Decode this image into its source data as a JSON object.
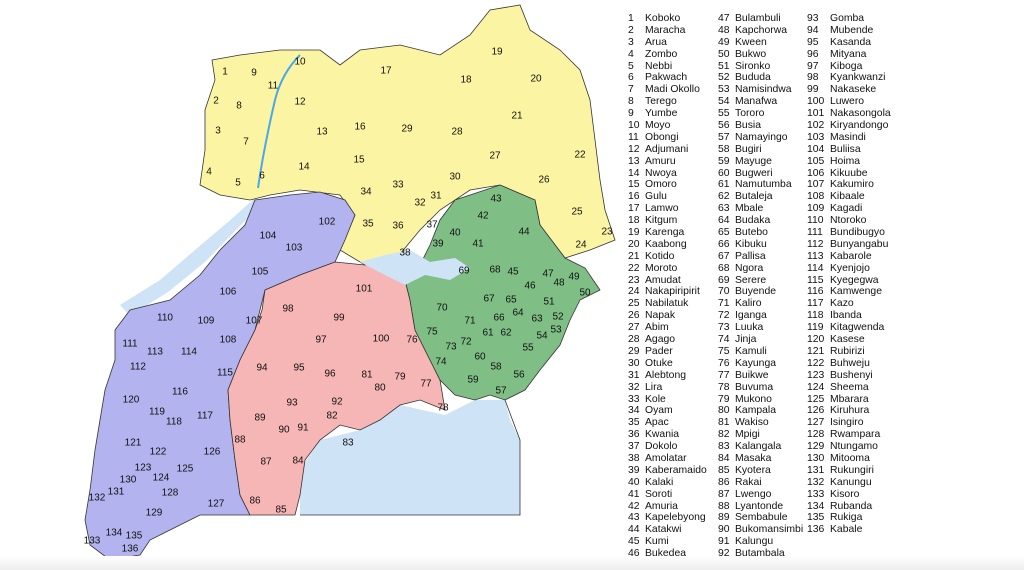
{
  "colors": {
    "north": "#fbf5a3",
    "east": "#7fbf86",
    "central": "#f6b6b6",
    "west": "#b3b3ef",
    "water": "#cfe3f6",
    "border": "#333333"
  },
  "districts": [
    "Koboko",
    "Maracha",
    "Arua",
    "Zombo",
    "Nebbi",
    "Pakwach",
    "Madi Okollo",
    "Terego",
    "Yumbe",
    "Moyo",
    "Obongi",
    "Adjumani",
    "Amuru",
    "Nwoya",
    "Omoro",
    "Gulu",
    "Lamwo",
    "Kitgum",
    "Karenga",
    "Kaabong",
    "Kotido",
    "Moroto",
    "Amudat",
    "Nakapiripirit",
    "Nabilatuk",
    "Napak",
    "Abim",
    "Agago",
    "Pader",
    "Otuke",
    "Alebtong",
    "Lira",
    "Kole",
    "Oyam",
    "Apac",
    "Kwania",
    "Dokolo",
    "Amolatar",
    "Kaberamaido",
    "Kalaki",
    "Soroti",
    "Amuria",
    "Kapelebyong",
    "Katakwi",
    "Kumi",
    "Bukedea",
    "Bulambuli",
    "Kapchorwa",
    "Kween",
    "Bukwo",
    "Sironko",
    "Bududa",
    "Namisindwa",
    "Manafwa",
    "Tororo",
    "Busia",
    "Namayingo",
    "Bugiri",
    "Mayuge",
    "Bugweri",
    "Namutumba",
    "Butaleja",
    "Mbale",
    "Budaka",
    "Butebo",
    "Kibuku",
    "Pallisa",
    "Ngora",
    "Serere",
    "Buyende",
    "Kaliro",
    "Iganga",
    "Luuka",
    "Jinja",
    "Kamuli",
    "Kayunga",
    "Buikwe",
    "Buvuma",
    "Mukono",
    "Kampala",
    "Wakiso",
    "Mpigi",
    "Kalangala",
    "Masaka",
    "Kyotera",
    "Rakai",
    "Lwengo",
    "Lyantonde",
    "Sembabule",
    "Bukomansimbi",
    "Kalungu",
    "Butambala",
    "Gomba",
    "Mubende",
    "Kasanda",
    "Mityana",
    "Kiboga",
    "Kyankwanzi",
    "Nakaseke",
    "Luwero",
    "Nakasongola",
    "Kiryandongo",
    "Masindi",
    "Buliisa",
    "Hoima",
    "Kikuube",
    "Kakumiro",
    "Kibaale",
    "Kagadi",
    "Ntoroko",
    "Bundibugyo",
    "Bunyangabu",
    "Kabarole",
    "Kyenjojo",
    "Kyegegwa",
    "Kamwenge",
    "Kazo",
    "Ibanda",
    "Kitagwenda",
    "Kasese",
    "Rubirizi",
    "Buhweju",
    "Bushenyi",
    "Sheema",
    "Mbarara",
    "Kiruhura",
    "Isingiro",
    "Rwampara",
    "Ntungamo",
    "Mitooma",
    "Rukungiri",
    "Kanungu",
    "Kisoro",
    "Rubanda",
    "Rukiga",
    "Kabale"
  ]
}
